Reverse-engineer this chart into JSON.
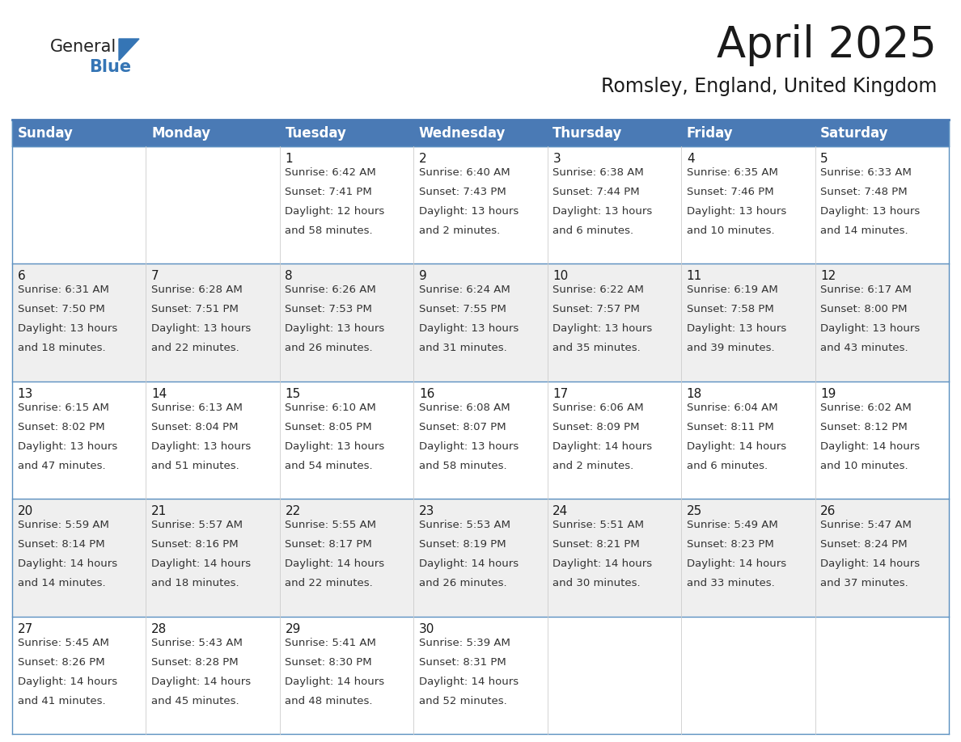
{
  "title": "April 2025",
  "subtitle": "Romsley, England, United Kingdom",
  "header_color": "#4a7ab5",
  "header_text_color": "#ffffff",
  "background_color": "#ffffff",
  "cell_bg_even": "#efefef",
  "cell_bg_odd": "#ffffff",
  "border_color": "#5a8fc0",
  "day_headers": [
    "Sunday",
    "Monday",
    "Tuesday",
    "Wednesday",
    "Thursday",
    "Friday",
    "Saturday"
  ],
  "title_fontsize": 38,
  "subtitle_fontsize": 17,
  "header_fontsize": 12,
  "cell_day_fontsize": 11,
  "cell_text_fontsize": 9.5,
  "weeks": [
    {
      "days": [
        {
          "day": "",
          "sunrise": "",
          "sunset": "",
          "daylight1": "",
          "daylight2": ""
        },
        {
          "day": "",
          "sunrise": "",
          "sunset": "",
          "daylight1": "",
          "daylight2": ""
        },
        {
          "day": "1",
          "sunrise": "Sunrise: 6:42 AM",
          "sunset": "Sunset: 7:41 PM",
          "daylight1": "Daylight: 12 hours",
          "daylight2": "and 58 minutes."
        },
        {
          "day": "2",
          "sunrise": "Sunrise: 6:40 AM",
          "sunset": "Sunset: 7:43 PM",
          "daylight1": "Daylight: 13 hours",
          "daylight2": "and 2 minutes."
        },
        {
          "day": "3",
          "sunrise": "Sunrise: 6:38 AM",
          "sunset": "Sunset: 7:44 PM",
          "daylight1": "Daylight: 13 hours",
          "daylight2": "and 6 minutes."
        },
        {
          "day": "4",
          "sunrise": "Sunrise: 6:35 AM",
          "sunset": "Sunset: 7:46 PM",
          "daylight1": "Daylight: 13 hours",
          "daylight2": "and 10 minutes."
        },
        {
          "day": "5",
          "sunrise": "Sunrise: 6:33 AM",
          "sunset": "Sunset: 7:48 PM",
          "daylight1": "Daylight: 13 hours",
          "daylight2": "and 14 minutes."
        }
      ]
    },
    {
      "days": [
        {
          "day": "6",
          "sunrise": "Sunrise: 6:31 AM",
          "sunset": "Sunset: 7:50 PM",
          "daylight1": "Daylight: 13 hours",
          "daylight2": "and 18 minutes."
        },
        {
          "day": "7",
          "sunrise": "Sunrise: 6:28 AM",
          "sunset": "Sunset: 7:51 PM",
          "daylight1": "Daylight: 13 hours",
          "daylight2": "and 22 minutes."
        },
        {
          "day": "8",
          "sunrise": "Sunrise: 6:26 AM",
          "sunset": "Sunset: 7:53 PM",
          "daylight1": "Daylight: 13 hours",
          "daylight2": "and 26 minutes."
        },
        {
          "day": "9",
          "sunrise": "Sunrise: 6:24 AM",
          "sunset": "Sunset: 7:55 PM",
          "daylight1": "Daylight: 13 hours",
          "daylight2": "and 31 minutes."
        },
        {
          "day": "10",
          "sunrise": "Sunrise: 6:22 AM",
          "sunset": "Sunset: 7:57 PM",
          "daylight1": "Daylight: 13 hours",
          "daylight2": "and 35 minutes."
        },
        {
          "day": "11",
          "sunrise": "Sunrise: 6:19 AM",
          "sunset": "Sunset: 7:58 PM",
          "daylight1": "Daylight: 13 hours",
          "daylight2": "and 39 minutes."
        },
        {
          "day": "12",
          "sunrise": "Sunrise: 6:17 AM",
          "sunset": "Sunset: 8:00 PM",
          "daylight1": "Daylight: 13 hours",
          "daylight2": "and 43 minutes."
        }
      ]
    },
    {
      "days": [
        {
          "day": "13",
          "sunrise": "Sunrise: 6:15 AM",
          "sunset": "Sunset: 8:02 PM",
          "daylight1": "Daylight: 13 hours",
          "daylight2": "and 47 minutes."
        },
        {
          "day": "14",
          "sunrise": "Sunrise: 6:13 AM",
          "sunset": "Sunset: 8:04 PM",
          "daylight1": "Daylight: 13 hours",
          "daylight2": "and 51 minutes."
        },
        {
          "day": "15",
          "sunrise": "Sunrise: 6:10 AM",
          "sunset": "Sunset: 8:05 PM",
          "daylight1": "Daylight: 13 hours",
          "daylight2": "and 54 minutes."
        },
        {
          "day": "16",
          "sunrise": "Sunrise: 6:08 AM",
          "sunset": "Sunset: 8:07 PM",
          "daylight1": "Daylight: 13 hours",
          "daylight2": "and 58 minutes."
        },
        {
          "day": "17",
          "sunrise": "Sunrise: 6:06 AM",
          "sunset": "Sunset: 8:09 PM",
          "daylight1": "Daylight: 14 hours",
          "daylight2": "and 2 minutes."
        },
        {
          "day": "18",
          "sunrise": "Sunrise: 6:04 AM",
          "sunset": "Sunset: 8:11 PM",
          "daylight1": "Daylight: 14 hours",
          "daylight2": "and 6 minutes."
        },
        {
          "day": "19",
          "sunrise": "Sunrise: 6:02 AM",
          "sunset": "Sunset: 8:12 PM",
          "daylight1": "Daylight: 14 hours",
          "daylight2": "and 10 minutes."
        }
      ]
    },
    {
      "days": [
        {
          "day": "20",
          "sunrise": "Sunrise: 5:59 AM",
          "sunset": "Sunset: 8:14 PM",
          "daylight1": "Daylight: 14 hours",
          "daylight2": "and 14 minutes."
        },
        {
          "day": "21",
          "sunrise": "Sunrise: 5:57 AM",
          "sunset": "Sunset: 8:16 PM",
          "daylight1": "Daylight: 14 hours",
          "daylight2": "and 18 minutes."
        },
        {
          "day": "22",
          "sunrise": "Sunrise: 5:55 AM",
          "sunset": "Sunset: 8:17 PM",
          "daylight1": "Daylight: 14 hours",
          "daylight2": "and 22 minutes."
        },
        {
          "day": "23",
          "sunrise": "Sunrise: 5:53 AM",
          "sunset": "Sunset: 8:19 PM",
          "daylight1": "Daylight: 14 hours",
          "daylight2": "and 26 minutes."
        },
        {
          "day": "24",
          "sunrise": "Sunrise: 5:51 AM",
          "sunset": "Sunset: 8:21 PM",
          "daylight1": "Daylight: 14 hours",
          "daylight2": "and 30 minutes."
        },
        {
          "day": "25",
          "sunrise": "Sunrise: 5:49 AM",
          "sunset": "Sunset: 8:23 PM",
          "daylight1": "Daylight: 14 hours",
          "daylight2": "and 33 minutes."
        },
        {
          "day": "26",
          "sunrise": "Sunrise: 5:47 AM",
          "sunset": "Sunset: 8:24 PM",
          "daylight1": "Daylight: 14 hours",
          "daylight2": "and 37 minutes."
        }
      ]
    },
    {
      "days": [
        {
          "day": "27",
          "sunrise": "Sunrise: 5:45 AM",
          "sunset": "Sunset: 8:26 PM",
          "daylight1": "Daylight: 14 hours",
          "daylight2": "and 41 minutes."
        },
        {
          "day": "28",
          "sunrise": "Sunrise: 5:43 AM",
          "sunset": "Sunset: 8:28 PM",
          "daylight1": "Daylight: 14 hours",
          "daylight2": "and 45 minutes."
        },
        {
          "day": "29",
          "sunrise": "Sunrise: 5:41 AM",
          "sunset": "Sunset: 8:30 PM",
          "daylight1": "Daylight: 14 hours",
          "daylight2": "and 48 minutes."
        },
        {
          "day": "30",
          "sunrise": "Sunrise: 5:39 AM",
          "sunset": "Sunset: 8:31 PM",
          "daylight1": "Daylight: 14 hours",
          "daylight2": "and 52 minutes."
        },
        {
          "day": "",
          "sunrise": "",
          "sunset": "",
          "daylight1": "",
          "daylight2": ""
        },
        {
          "day": "",
          "sunrise": "",
          "sunset": "",
          "daylight1": "",
          "daylight2": ""
        },
        {
          "day": "",
          "sunrise": "",
          "sunset": "",
          "daylight1": "",
          "daylight2": ""
        }
      ]
    }
  ]
}
